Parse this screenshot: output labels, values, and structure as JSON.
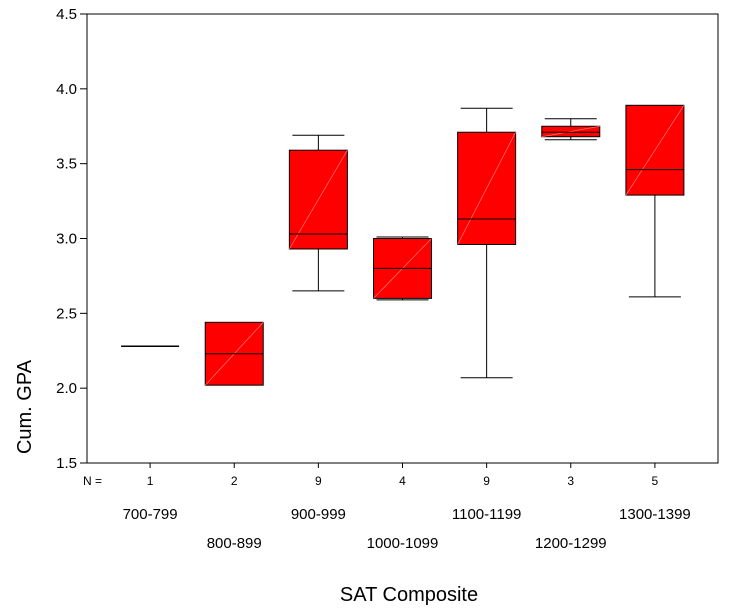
{
  "chart_data": {
    "type": "box",
    "title": "",
    "xlabel": "SAT Composite",
    "ylabel": "Cum. GPA",
    "ylim": [
      1.5,
      4.5
    ],
    "yticks": [
      "1.5",
      "2.0",
      "2.5",
      "3.0",
      "3.5",
      "4.0",
      "4.5"
    ],
    "n_prefix": "N =",
    "box_color": "#ff0000",
    "categories": [
      {
        "label": "700-799",
        "n": "1",
        "min": 2.28,
        "q1": 2.28,
        "median": 2.28,
        "q3": 2.28,
        "max": 2.28
      },
      {
        "label": "800-899",
        "n": "2",
        "min": 2.02,
        "q1": 2.02,
        "median": 2.23,
        "q3": 2.44,
        "max": 2.44
      },
      {
        "label": "900-999",
        "n": "9",
        "min": 2.65,
        "q1": 2.93,
        "median": 3.03,
        "q3": 3.59,
        "max": 3.69
      },
      {
        "label": "1000-1099",
        "n": "4",
        "min": 2.59,
        "q1": 2.6,
        "median": 2.8,
        "q3": 3.0,
        "max": 3.01
      },
      {
        "label": "1100-1199",
        "n": "9",
        "min": 2.07,
        "q1": 2.96,
        "median": 3.13,
        "q3": 3.71,
        "max": 3.87
      },
      {
        "label": "1200-1299",
        "n": "3",
        "min": 3.66,
        "q1": 3.68,
        "median": 3.71,
        "q3": 3.75,
        "max": 3.8
      },
      {
        "label": "1300-1399",
        "n": "5",
        "min": 2.61,
        "q1": 3.29,
        "median": 3.46,
        "q3": 3.89,
        "max": 3.89
      }
    ]
  }
}
